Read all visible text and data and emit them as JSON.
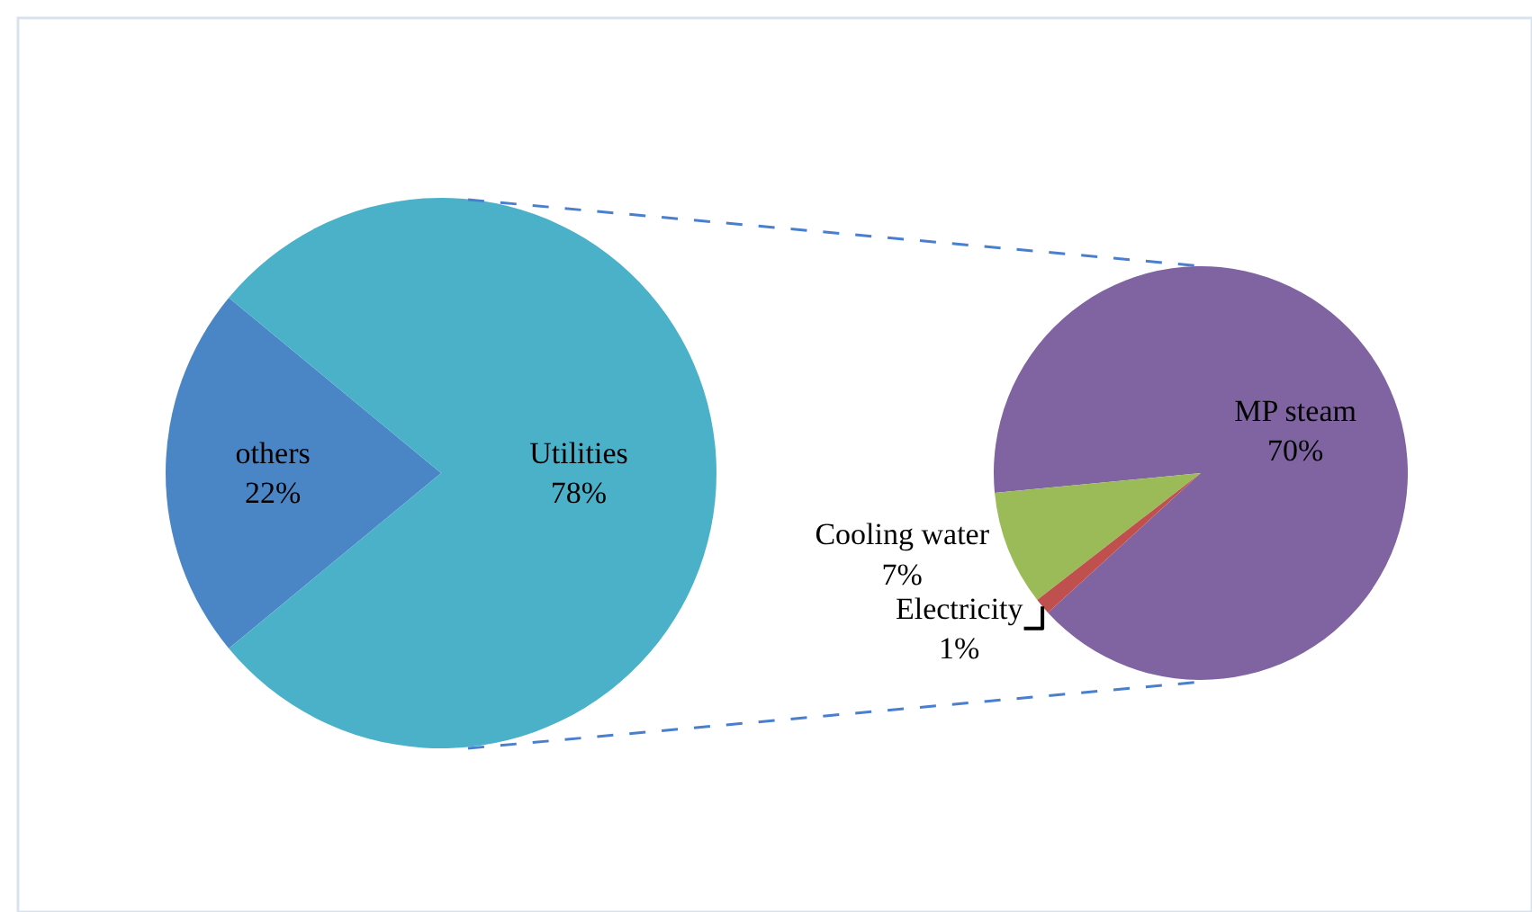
{
  "chart_data": [
    {
      "type": "pie",
      "categories": [
        "others",
        "Utilities"
      ],
      "values": [
        22,
        78
      ],
      "colors": [
        "#4a86c5",
        "#4bb1c9"
      ],
      "value_labels": [
        "22%",
        "78%"
      ]
    },
    {
      "type": "pie",
      "categories": [
        "MP steam",
        "Cooling water",
        "Electricity"
      ],
      "values": [
        70,
        7,
        1
      ],
      "colors": [
        "#8064a2",
        "#9bbb59",
        "#c0504d"
      ],
      "value_labels": [
        "70%",
        "7%",
        "1%"
      ]
    }
  ]
}
